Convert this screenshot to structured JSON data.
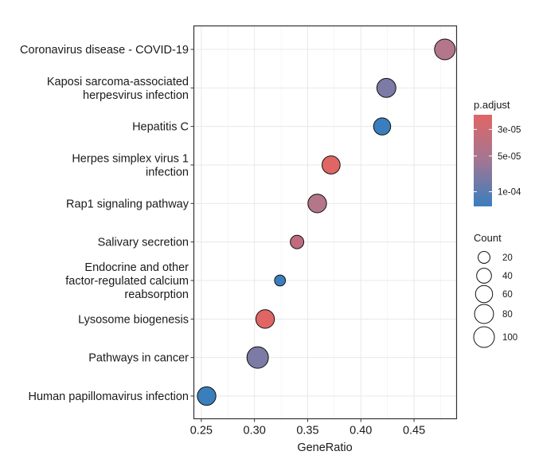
{
  "chart_data": {
    "type": "scatter",
    "subtype": "dotplot",
    "title": "",
    "xlabel": "GeneRatio",
    "ylabel": "",
    "xlim": [
      0.243,
      0.49
    ],
    "xticks": [
      0.25,
      0.3,
      0.35,
      0.4,
      0.45
    ],
    "xtick_labels": [
      "0.25",
      "0.30",
      "0.35",
      "0.40",
      "0.45"
    ],
    "grid": true,
    "categories": [
      [
        "Coronavirus disease - COVID-19"
      ],
      [
        "Kaposi sarcoma-associated",
        "herpesvirus infection"
      ],
      [
        "Hepatitis C"
      ],
      [
        "Herpes simplex virus 1",
        "infection"
      ],
      [
        "Rap1 signaling pathway"
      ],
      [
        "Salivary secretion"
      ],
      [
        "Endocrine and other",
        "factor-regulated calcium",
        "reabsorption"
      ],
      [
        "Lysosome biogenesis"
      ],
      [
        "Pathways in cancer"
      ],
      [
        "Human papillomavirus infection"
      ]
    ],
    "points": [
      {
        "term": "Coronavirus disease - COVID-19",
        "gene_ratio": 0.479,
        "count": 100,
        "p_adjust": 5e-05,
        "color": "#B4768A"
      },
      {
        "term": "Kaposi sarcoma-associated herpesvirus infection",
        "gene_ratio": 0.424,
        "count": 80,
        "p_adjust": 8e-05,
        "color": "#7C7BA6"
      },
      {
        "term": "Hepatitis C",
        "gene_ratio": 0.42,
        "count": 60,
        "p_adjust": 0.00013,
        "color": "#3A7EBE"
      },
      {
        "term": "Herpes simplex virus 1 infection",
        "gene_ratio": 0.372,
        "count": 70,
        "p_adjust": 2.6e-05,
        "color": "#E06666"
      },
      {
        "term": "Rap1 signaling pathway",
        "gene_ratio": 0.359,
        "count": 75,
        "p_adjust": 4.5e-05,
        "color": "#B47689"
      },
      {
        "term": "Salivary secretion",
        "gene_ratio": 0.34,
        "count": 30,
        "p_adjust": 4e-05,
        "color": "#C06C7E"
      },
      {
        "term": "Endocrine and other factor-regulated calcium reabsorption",
        "gene_ratio": 0.324,
        "count": 15,
        "p_adjust": 0.00013,
        "color": "#3A7EBE"
      },
      {
        "term": "Lysosome biogenesis",
        "gene_ratio": 0.31,
        "count": 75,
        "p_adjust": 2.6e-05,
        "color": "#E06666"
      },
      {
        "term": "Pathways in cancer",
        "gene_ratio": 0.303,
        "count": 110,
        "p_adjust": 8e-05,
        "color": "#7C7BA6"
      },
      {
        "term": "Human papillomavirus infection",
        "gene_ratio": 0.255,
        "count": 75,
        "p_adjust": 0.00013,
        "color": "#3A7EBE"
      }
    ],
    "legend": {
      "color": {
        "title": "p.adjust",
        "low_color": "#E06666",
        "high_color": "#3A7EBE",
        "labels": [
          "3e-05",
          "5e-05",
          "1e-04"
        ],
        "label_positions": [
          0.16,
          0.45,
          0.84
        ]
      },
      "size": {
        "title": "Count",
        "values": [
          20,
          40,
          60,
          80,
          100
        ],
        "labels": [
          "20",
          "40",
          "60",
          "80",
          "100"
        ]
      },
      "placement": "right"
    }
  }
}
